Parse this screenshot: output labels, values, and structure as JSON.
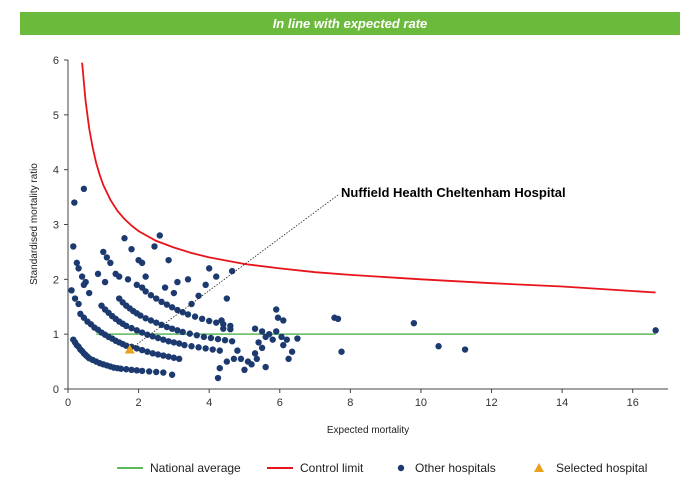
{
  "banner": {
    "text": "In line with expected rate",
    "color": "#6cba3c"
  },
  "chart_data": {
    "type": "scatter",
    "title": "In line with expected rate",
    "xlabel": "Expected mortality",
    "ylabel": "Standardised mortality ratio",
    "xlim": [
      0,
      17
    ],
    "ylim": [
      0,
      6
    ],
    "xticks": [
      0,
      2,
      4,
      6,
      8,
      10,
      12,
      14,
      16
    ],
    "yticks": [
      0,
      1,
      2,
      3,
      4,
      5,
      6
    ],
    "grid": false,
    "legend_position": "bottom",
    "annotation": "Nuffield Health Cheltenham Hospital",
    "national_average": {
      "name": "National average",
      "value": 1,
      "x": [
        0.8,
        16.65
      ],
      "color": "#5cb85c"
    },
    "control_limit": {
      "name": "Control limit",
      "color": "#e8141b",
      "x": [
        0.4,
        0.5,
        0.6,
        0.7,
        0.8,
        0.9,
        1.0,
        1.2,
        1.4,
        1.6,
        1.8,
        2.0,
        2.5,
        3.0,
        3.5,
        4.0,
        5.0,
        6.0,
        7.0,
        8.0,
        10.0,
        12.0,
        14.0,
        16.65
      ],
      "y": [
        5.95,
        5.25,
        4.75,
        4.4,
        4.12,
        3.9,
        3.72,
        3.45,
        3.25,
        3.1,
        2.98,
        2.88,
        2.7,
        2.58,
        2.48,
        2.4,
        2.28,
        2.2,
        2.13,
        2.08,
        2.0,
        1.93,
        1.87,
        1.76
      ]
    },
    "other_hospitals": {
      "name": "Other hospitals",
      "color": "#1c3a70",
      "points": [
        [
          0.15,
          0.9
        ],
        [
          0.2,
          0.85
        ],
        [
          0.25,
          0.8
        ],
        [
          0.3,
          0.77
        ],
        [
          0.35,
          0.72
        ],
        [
          0.4,
          0.69
        ],
        [
          0.45,
          0.65
        ],
        [
          0.5,
          0.62
        ],
        [
          0.55,
          0.59
        ],
        [
          0.6,
          0.56
        ],
        [
          0.7,
          0.53
        ],
        [
          0.8,
          0.5
        ],
        [
          0.9,
          0.47
        ],
        [
          1.0,
          0.45
        ],
        [
          1.1,
          0.43
        ],
        [
          1.2,
          0.41
        ],
        [
          1.3,
          0.39
        ],
        [
          1.4,
          0.38
        ],
        [
          1.5,
          0.37
        ],
        [
          1.65,
          0.36
        ],
        [
          1.8,
          0.35
        ],
        [
          1.95,
          0.34
        ],
        [
          2.1,
          0.33
        ],
        [
          2.3,
          0.32
        ],
        [
          2.5,
          0.31
        ],
        [
          2.7,
          0.3
        ],
        [
          2.95,
          0.26
        ],
        [
          0.35,
          1.37
        ],
        [
          0.45,
          1.3
        ],
        [
          0.55,
          1.23
        ],
        [
          0.65,
          1.18
        ],
        [
          0.75,
          1.12
        ],
        [
          0.85,
          1.08
        ],
        [
          0.95,
          1.03
        ],
        [
          1.05,
          0.99
        ],
        [
          1.15,
          0.95
        ],
        [
          1.25,
          0.92
        ],
        [
          1.35,
          0.88
        ],
        [
          1.45,
          0.85
        ],
        [
          1.55,
          0.82
        ],
        [
          1.65,
          0.79
        ],
        [
          1.8,
          0.77
        ],
        [
          1.95,
          0.74
        ],
        [
          2.1,
          0.71
        ],
        [
          2.25,
          0.68
        ],
        [
          2.4,
          0.65
        ],
        [
          2.55,
          0.63
        ],
        [
          2.7,
          0.61
        ],
        [
          2.85,
          0.59
        ],
        [
          3.0,
          0.57
        ],
        [
          3.15,
          0.55
        ],
        [
          0.95,
          1.52
        ],
        [
          1.05,
          1.45
        ],
        [
          1.15,
          1.39
        ],
        [
          1.25,
          1.33
        ],
        [
          1.35,
          1.28
        ],
        [
          1.45,
          1.23
        ],
        [
          1.55,
          1.19
        ],
        [
          1.65,
          1.15
        ],
        [
          1.8,
          1.11
        ],
        [
          1.95,
          1.07
        ],
        [
          2.1,
          1.03
        ],
        [
          2.25,
          0.99
        ],
        [
          2.4,
          0.96
        ],
        [
          2.55,
          0.93
        ],
        [
          2.7,
          0.9
        ],
        [
          2.85,
          0.87
        ],
        [
          3.0,
          0.85
        ],
        [
          3.15,
          0.83
        ],
        [
          3.3,
          0.8
        ],
        [
          3.5,
          0.78
        ],
        [
          3.7,
          0.76
        ],
        [
          3.9,
          0.74
        ],
        [
          4.1,
          0.72
        ],
        [
          4.3,
          0.7
        ],
        [
          1.45,
          1.65
        ],
        [
          1.55,
          1.58
        ],
        [
          1.65,
          1.52
        ],
        [
          1.75,
          1.47
        ],
        [
          1.85,
          1.42
        ],
        [
          1.95,
          1.38
        ],
        [
          2.05,
          1.34
        ],
        [
          2.2,
          1.29
        ],
        [
          2.35,
          1.25
        ],
        [
          2.5,
          1.21
        ],
        [
          2.65,
          1.17
        ],
        [
          2.8,
          1.13
        ],
        [
          2.95,
          1.1
        ],
        [
          3.1,
          1.07
        ],
        [
          3.25,
          1.04
        ],
        [
          3.45,
          1.01
        ],
        [
          3.65,
          0.98
        ],
        [
          3.85,
          0.95
        ],
        [
          4.05,
          0.93
        ],
        [
          4.25,
          0.91
        ],
        [
          4.45,
          0.89
        ],
        [
          4.65,
          0.87
        ],
        [
          2.1,
          1.85
        ],
        [
          2.2,
          1.78
        ],
        [
          2.35,
          1.71
        ],
        [
          2.5,
          1.65
        ],
        [
          2.65,
          1.59
        ],
        [
          2.8,
          1.54
        ],
        [
          2.95,
          1.49
        ],
        [
          3.1,
          1.44
        ],
        [
          3.25,
          1.4
        ],
        [
          3.4,
          1.36
        ],
        [
          3.6,
          1.32
        ],
        [
          3.8,
          1.28
        ],
        [
          4.0,
          1.24
        ],
        [
          4.2,
          1.21
        ],
        [
          4.4,
          1.18
        ],
        [
          4.6,
          1.15
        ],
        [
          4.4,
          1.1
        ],
        [
          4.6,
          1.09
        ],
        [
          0.1,
          1.8
        ],
        [
          0.15,
          2.6
        ],
        [
          0.18,
          3.4
        ],
        [
          0.25,
          2.3
        ],
        [
          0.3,
          2.2
        ],
        [
          0.4,
          2.05
        ],
        [
          0.5,
          1.95
        ],
        [
          0.45,
          1.9
        ],
        [
          0.6,
          1.75
        ],
        [
          0.2,
          1.65
        ],
        [
          0.3,
          1.55
        ],
        [
          0.85,
          2.1
        ],
        [
          1.0,
          2.5
        ],
        [
          1.05,
          1.95
        ],
        [
          1.1,
          2.4
        ],
        [
          1.2,
          2.3
        ],
        [
          1.35,
          2.1
        ],
        [
          1.45,
          2.05
        ],
        [
          1.6,
          2.75
        ],
        [
          1.8,
          2.55
        ],
        [
          1.7,
          2.0
        ],
        [
          1.95,
          1.9
        ],
        [
          2.0,
          2.35
        ],
        [
          2.1,
          2.3
        ],
        [
          2.2,
          2.05
        ],
        [
          2.45,
          2.6
        ],
        [
          2.6,
          2.8
        ],
        [
          2.85,
          2.35
        ],
        [
          2.75,
          1.85
        ],
        [
          3.1,
          1.95
        ],
        [
          3.0,
          1.75
        ],
        [
          3.4,
          2.0
        ],
        [
          3.7,
          1.7
        ],
        [
          3.5,
          1.55
        ],
        [
          3.9,
          1.9
        ],
        [
          4.0,
          2.2
        ],
        [
          4.2,
          2.05
        ],
        [
          4.35,
          1.25
        ],
        [
          4.5,
          1.65
        ],
        [
          4.65,
          2.15
        ],
        [
          0.45,
          3.65
        ],
        [
          4.8,
          0.7
        ],
        [
          4.7,
          0.55
        ],
        [
          4.5,
          0.5
        ],
        [
          4.3,
          0.38
        ],
        [
          4.25,
          0.2
        ],
        [
          4.9,
          0.55
        ],
        [
          5.1,
          0.5
        ],
        [
          5.2,
          0.45
        ],
        [
          5.0,
          0.35
        ],
        [
          5.3,
          1.1
        ],
        [
          5.5,
          1.05
        ],
        [
          5.7,
          1.0
        ],
        [
          5.6,
          0.95
        ],
        [
          5.8,
          0.9
        ],
        [
          5.4,
          0.85
        ],
        [
          5.5,
          0.75
        ],
        [
          5.3,
          0.65
        ],
        [
          5.35,
          0.55
        ],
        [
          5.6,
          0.4
        ],
        [
          5.9,
          1.45
        ],
        [
          5.95,
          1.3
        ],
        [
          6.1,
          1.25
        ],
        [
          5.9,
          1.05
        ],
        [
          6.05,
          0.95
        ],
        [
          6.2,
          0.9
        ],
        [
          6.1,
          0.8
        ],
        [
          6.35,
          0.68
        ],
        [
          6.25,
          0.55
        ],
        [
          6.5,
          0.92
        ],
        [
          7.55,
          1.3
        ],
        [
          7.65,
          1.28
        ],
        [
          7.75,
          0.68
        ],
        [
          9.8,
          1.2
        ],
        [
          10.5,
          0.78
        ],
        [
          11.25,
          0.72
        ],
        [
          16.65,
          1.07
        ]
      ]
    },
    "selected_hospital": {
      "name": "Selected hospital",
      "x": 1.75,
      "y": 0.72,
      "color": "#e8a21b"
    }
  }
}
